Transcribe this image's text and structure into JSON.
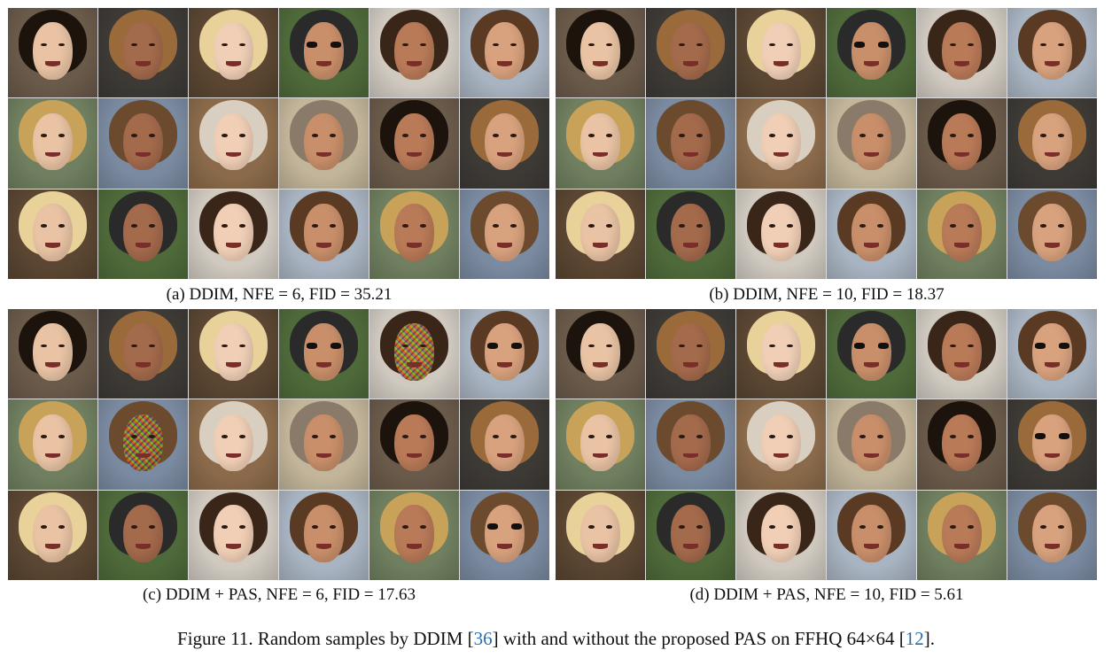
{
  "panels": [
    {
      "caption": "(a) DDIM, NFE = 6, FID = 35.21"
    },
    {
      "caption": "(b) DDIM, NFE = 10, FID = 18.37"
    },
    {
      "caption": "(c) DDIM + PAS, NFE = 6, FID = 17.63"
    },
    {
      "caption": "(d) DDIM + PAS, NFE = 10, FID = 5.61"
    }
  ],
  "figure": {
    "label": "Figure 11.",
    "text1": " Random samples by DDIM [",
    "ref1": "36",
    "text2": "] with and without the proposed PAS on FFHQ 64×64 [",
    "ref2": "12",
    "text3": "]."
  },
  "colors": {
    "skin": [
      "#e9c3a4",
      "#d9a27e",
      "#b97a58",
      "#c98f6a",
      "#f0cfb6",
      "#a46a4c"
    ],
    "hair": [
      "#3a2618",
      "#6b4a2e",
      "#1c130d",
      "#2a2a2a",
      "#c9a25a",
      "#8a7a6a",
      "#e8d29a",
      "#5a3a22",
      "#d8cfc0",
      "#9a6a3a"
    ],
    "bg": [
      "#4f6a3a",
      "#6a5a4a",
      "#7a8aa0",
      "#cfc9c0",
      "#3d3a36",
      "#8a6a4a",
      "#a9b4c2",
      "#5a4632",
      "#c2b59a",
      "#6f7f5f"
    ],
    "link": "#2b6cb0"
  }
}
